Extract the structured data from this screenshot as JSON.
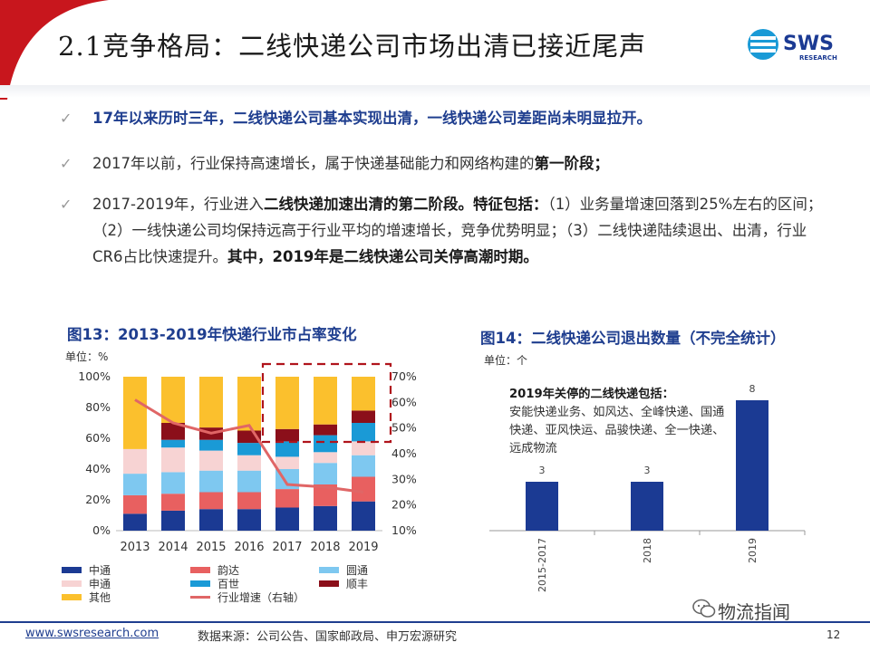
{
  "header": {
    "title": "2.1竞争格局：二线快递公司市场出清已接近尾声",
    "logo_text": "SWS",
    "logo_sub": "RESEARCH"
  },
  "bullets": [
    {
      "id": "b1",
      "parts": [
        {
          "t": "17年以来历时三年，二线快递公司基本实现出清，一线快递公司差距尚未明显拉开。",
          "b": false
        }
      ]
    },
    {
      "id": "b2",
      "parts": [
        {
          "t": "2017年以前，行业保持高速增长，属于快递基础能力和网络构建的",
          "b": false
        },
        {
          "t": "第一阶段；",
          "b": true
        }
      ]
    },
    {
      "id": "b3",
      "parts": [
        {
          "t": "2017-2019年，行业进入",
          "b": false
        },
        {
          "t": "二线快递加速出清的第二阶段。特征包括：",
          "b": true
        },
        {
          "t": "（1）业务量增速回落到25%左右的区间；（2）一线快递公司均保持远高于行业平均的增速增长，竞争优势明显；（3）二线快递陆续退出、出清，行业CR6占比快速提升。",
          "b": false
        },
        {
          "t": "其中，2019年是二线快递公司关停高潮时期。",
          "b": true
        }
      ]
    }
  ],
  "chart13": {
    "title": "图13：2013-2019年快递行业市占率变化",
    "unit": "单位：%"
  },
  "chart14": {
    "title": "图14：二线快递公司退出数量（不完全统计）",
    "unit": "单位：个",
    "note_title": "2019年关停的二线快递包括：",
    "note_body": "安能快递业务、如风达、全峰快递、国通快递、亚风快运、品骏快递、全一快递、远成物流"
  },
  "chart_data": [
    {
      "type": "bar",
      "stacked": true,
      "categories": [
        "2013",
        "2014",
        "2015",
        "2016",
        "2017",
        "2018",
        "2019"
      ],
      "ylim": [
        0,
        100
      ],
      "yticks": [
        "0%",
        "20%",
        "40%",
        "60%",
        "80%",
        "100%"
      ],
      "y2lim": [
        10,
        70
      ],
      "y2ticks": [
        "10%",
        "20%",
        "30%",
        "40%",
        "50%",
        "60%",
        "70%"
      ],
      "series": [
        {
          "name": "中通",
          "color": "#1b3a93",
          "values": [
            11,
            13,
            14,
            14,
            15,
            16,
            19
          ]
        },
        {
          "name": "韵达",
          "color": "#e86060",
          "values": [
            12,
            11,
            11,
            11,
            12,
            14,
            16
          ]
        },
        {
          "name": "圆通",
          "color": "#7ec8f0",
          "values": [
            14,
            14,
            14,
            14,
            13,
            14,
            14
          ]
        },
        {
          "name": "申通",
          "color": "#f7d3d3",
          "values": [
            16,
            16,
            13,
            10,
            8,
            7,
            9
          ]
        },
        {
          "name": "百世",
          "color": "#1a9ad6",
          "values": [
            0,
            5,
            7,
            8,
            10,
            11,
            12
          ]
        },
        {
          "name": "顺丰",
          "color": "#8b0f1a",
          "values": [
            0,
            11,
            8,
            8,
            8,
            7,
            8
          ]
        },
        {
          "name": "其他",
          "color": "#fbc02d",
          "values": [
            47,
            30,
            33,
            35,
            34,
            31,
            22
          ]
        }
      ],
      "line": {
        "name": "行业增速（右轴）",
        "color": "#e06666",
        "values": [
          61,
          52,
          48,
          51,
          28,
          27,
          25
        ]
      },
      "legend": [
        {
          "name": "中通",
          "kind": "bar"
        },
        {
          "name": "韵达",
          "kind": "bar"
        },
        {
          "name": "圆通",
          "kind": "bar"
        },
        {
          "name": "申通",
          "kind": "bar"
        },
        {
          "name": "百世",
          "kind": "bar"
        },
        {
          "name": "顺丰",
          "kind": "bar"
        },
        {
          "name": "其他",
          "kind": "bar"
        },
        {
          "name": "行业增速（右轴）",
          "kind": "line"
        }
      ]
    },
    {
      "type": "bar",
      "categories": [
        "2015-2017",
        "2018",
        "2019"
      ],
      "values": [
        3,
        3,
        8
      ],
      "ylim": [
        0,
        10
      ],
      "color": "#1b3a93"
    }
  ],
  "footer": {
    "url": "www.swsresearch.com",
    "source": "数据来源：公司公告、国家邮政局、申万宏源研究",
    "page": "12",
    "watermark": "物流指闻"
  }
}
